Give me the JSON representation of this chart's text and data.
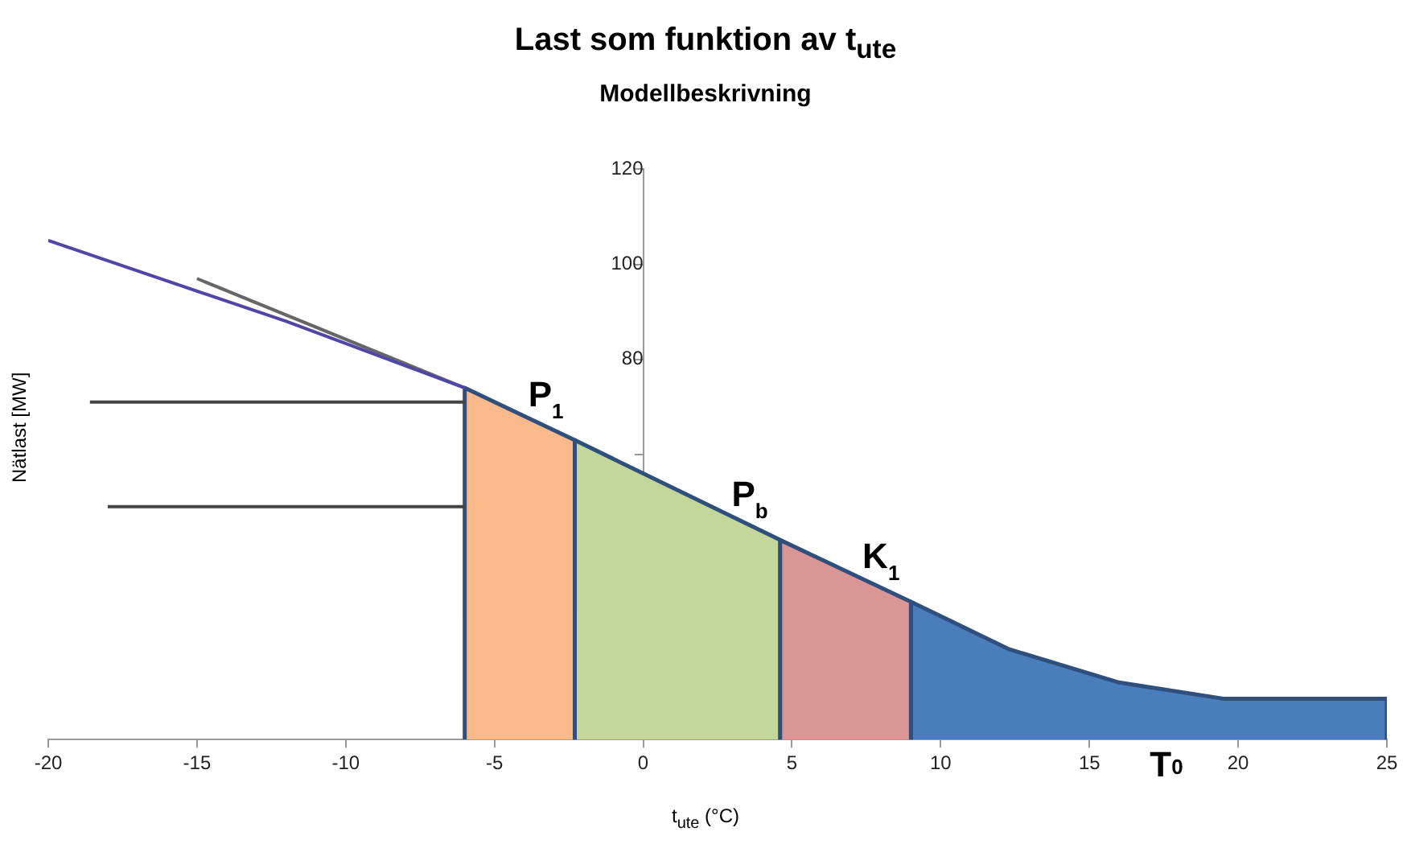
{
  "chart_data": {
    "type": "line",
    "title": "Last som funktion av t$_{ute}$",
    "subtitle": "Modellbeskrivning",
    "xlabel": "t$_{ute}$ (°C)",
    "ylabel": "Nätlast [MW]",
    "xlim": [
      -20,
      25
    ],
    "xticks": [
      -20,
      -15,
      -10,
      -5,
      0,
      5,
      10,
      15,
      20,
      25
    ],
    "ylim": [
      0,
      120
    ],
    "yticks": [
      {
        "value": 60,
        "label": null
      },
      80,
      100,
      120
    ],
    "grid": false,
    "legend": false,
    "marker": "none",
    "series": [
      {
        "type": "line",
        "color": "#5046a8",
        "x": [
          -20,
          -12,
          -6
        ],
        "values": [
          105,
          88,
          74
        ]
      },
      {
        "type": "line",
        "color": "#666666",
        "x": [
          -15,
          -6
        ],
        "values": [
          97,
          74
        ]
      },
      {
        "type": "line",
        "color": "#444444",
        "x": [
          -18.6,
          -6
        ],
        "values": [
          71,
          71
        ]
      },
      {
        "type": "line",
        "color": "#444444",
        "x": [
          -18,
          -6
        ],
        "values": [
          49,
          49
        ]
      },
      {
        "type": "area",
        "color": "#f9b98a",
        "x": [
          -6,
          -6,
          -2.3,
          -2.3
        ],
        "values": [
          0,
          74,
          63,
          0
        ]
      },
      {
        "type": "area",
        "color": "#c4d79b",
        "x": [
          -2.3,
          -2.3,
          4.6,
          4.6
        ],
        "values": [
          0,
          63,
          42,
          0
        ]
      },
      {
        "type": "area",
        "color": "#da9694",
        "x": [
          4.6,
          4.6,
          9,
          9
        ],
        "values": [
          0,
          42,
          29,
          0
        ]
      },
      {
        "type": "area",
        "color": "#4a7ebb",
        "x": [
          9,
          9,
          12.3,
          16,
          19.5,
          25,
          25
        ],
        "values": [
          0,
          29,
          19,
          12,
          8.6,
          8.6,
          0
        ]
      }
    ],
    "annotations": [
      {
        "text": "P$_{1}$",
        "x": -2.3,
        "y": 63
      },
      {
        "text": "P$_{b}$",
        "x": 4.6,
        "y": 42
      },
      {
        "text": "K$_{1}$",
        "x": 9,
        "y": 29
      },
      {
        "text": "T$_{0}$",
        "x": 19.5,
        "y": 0
      }
    ]
  }
}
